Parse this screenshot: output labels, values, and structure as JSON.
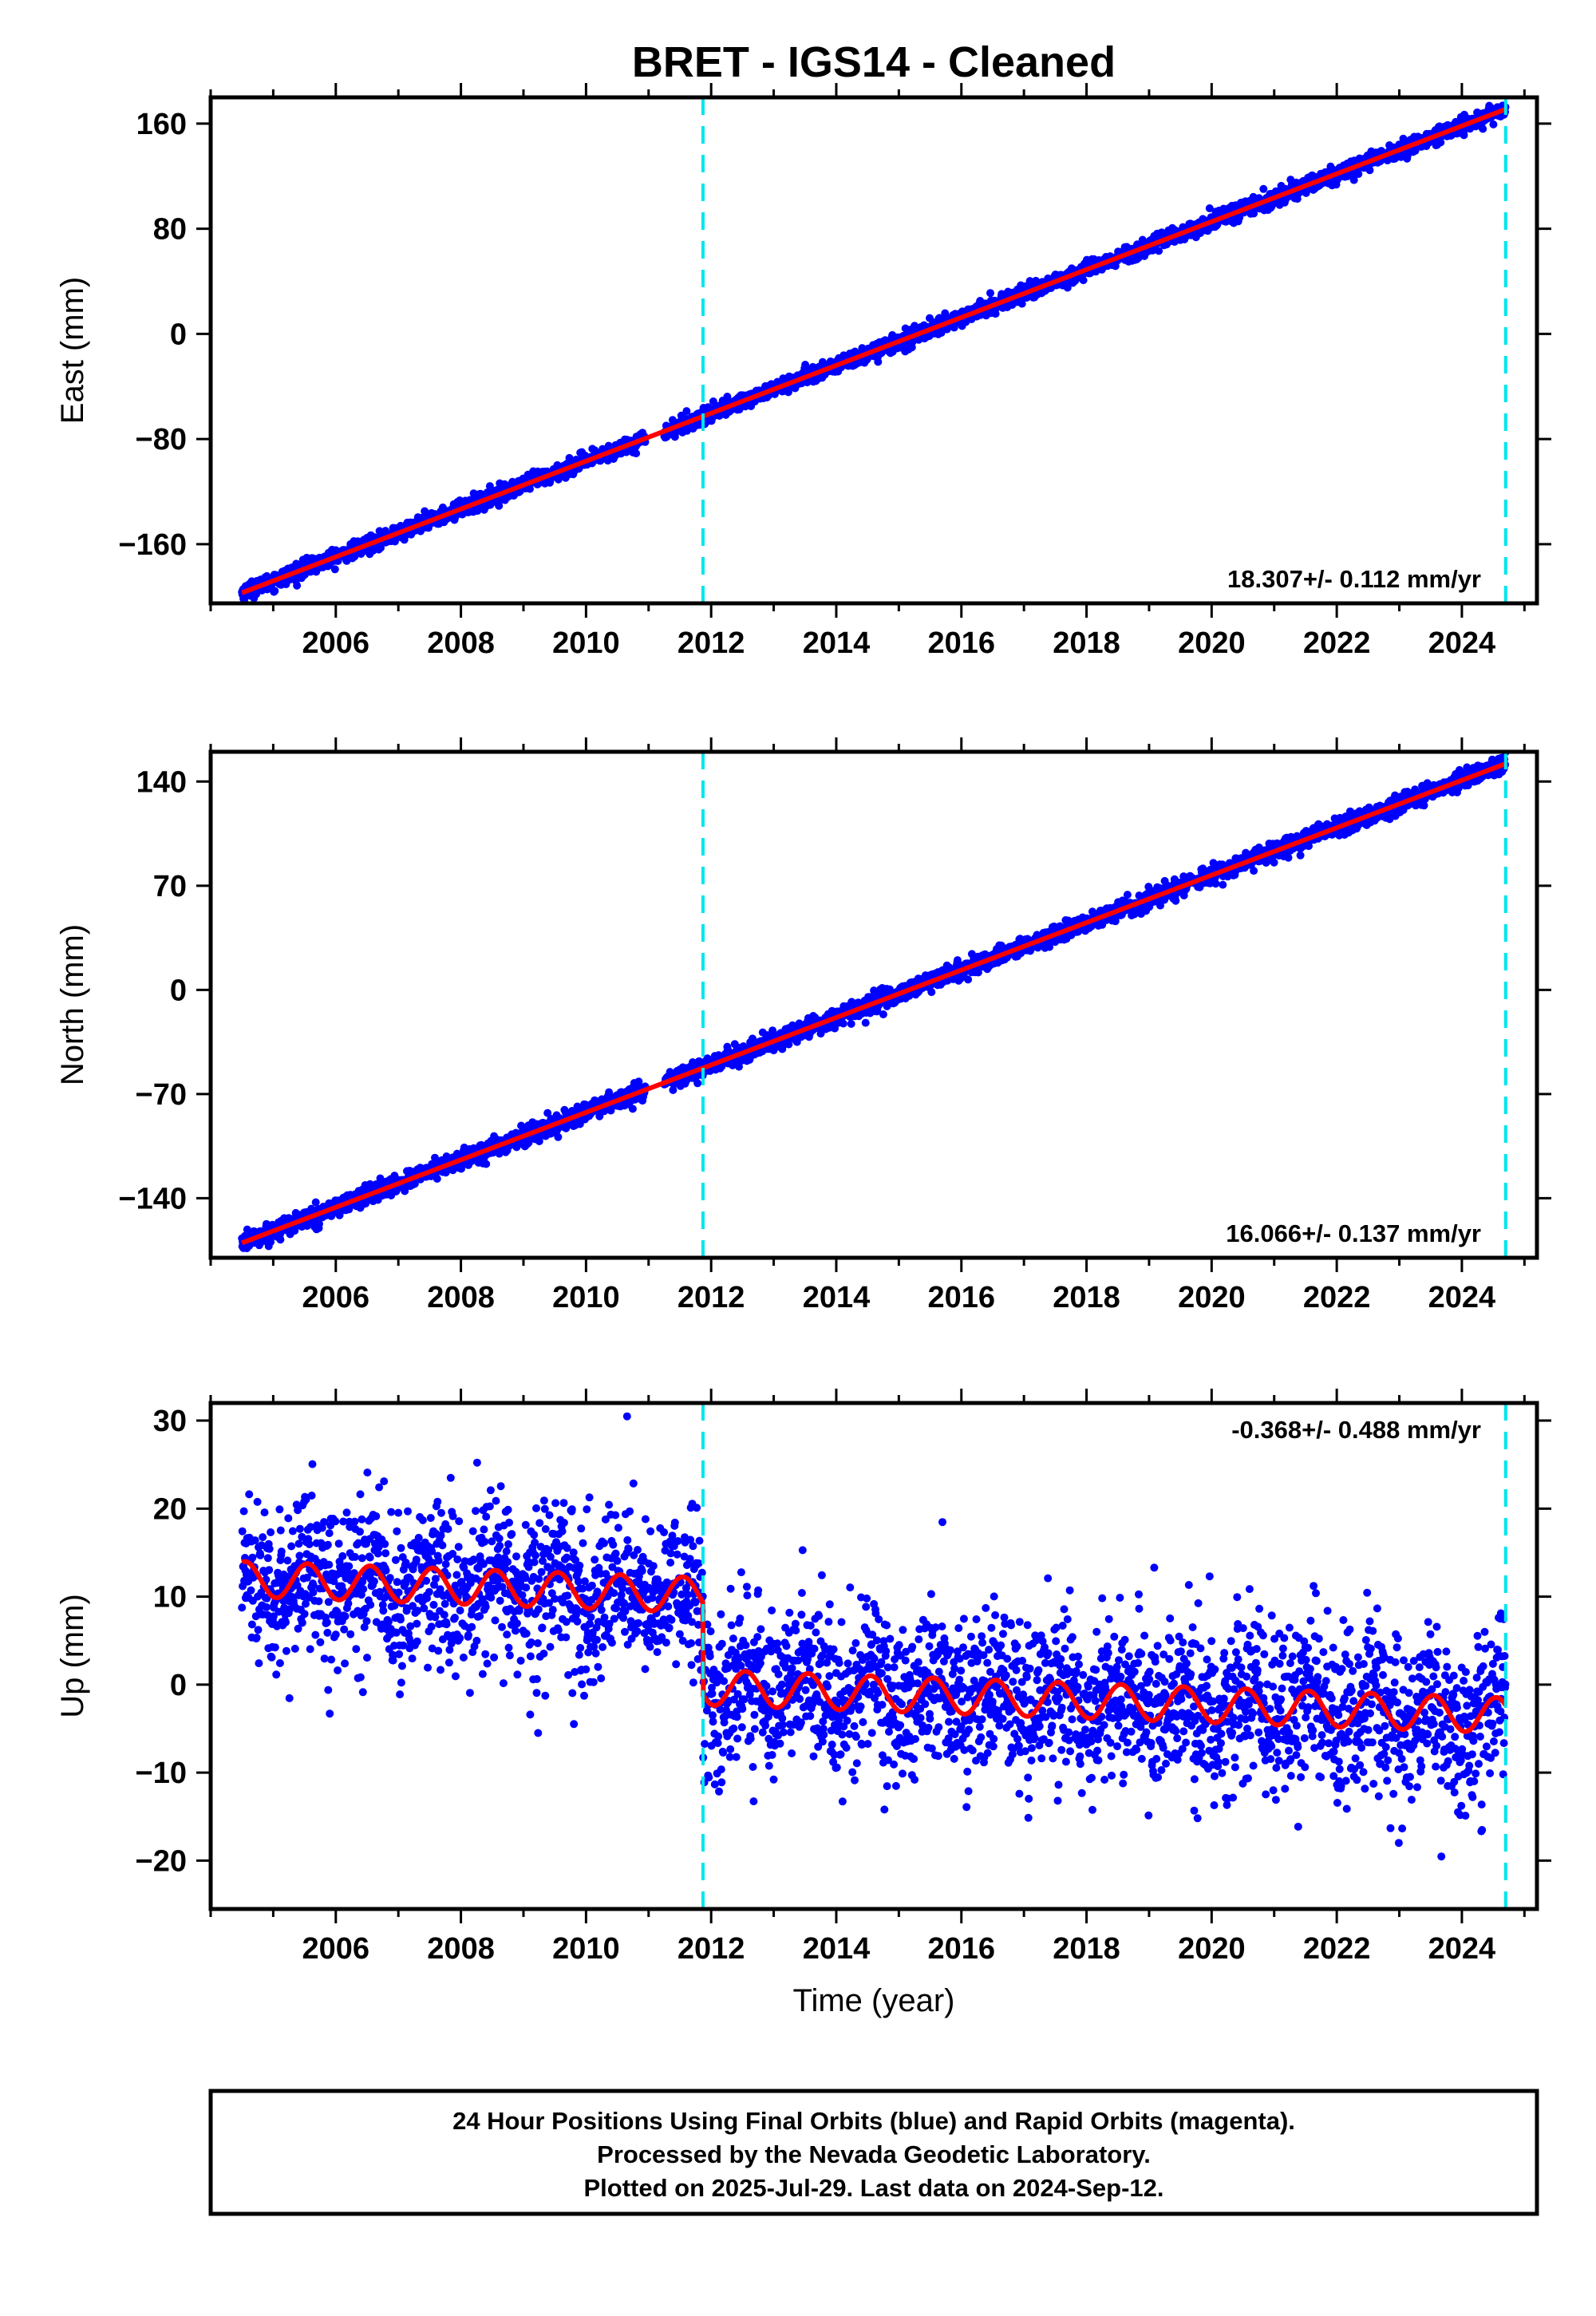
{
  "title": "BRET  - IGS14 - Cleaned",
  "colors": {
    "data_points": "#0000ff",
    "model_fit": "#ff0000",
    "breaks": "#00e5ee",
    "frame": "#000000"
  },
  "chart_data": [
    {
      "type": "scatter",
      "ylabel": "East (mm)",
      "xlim": [
        2004.0,
        2025.2
      ],
      "ylim": [
        -205,
        180
      ],
      "yticks": [
        160,
        80,
        0,
        -80,
        -160
      ],
      "ytick_labels": [
        "160",
        "80",
        "0",
        "−80",
        "−160"
      ],
      "xticks": [
        2006,
        2008,
        2010,
        2012,
        2014,
        2016,
        2018,
        2020,
        2022,
        2024
      ],
      "xtick_labels": [
        "2006",
        "2008",
        "2010",
        "2012",
        "2014",
        "2016",
        "2018",
        "2020",
        "2022",
        "2024"
      ],
      "rate": "18.307+/- 0.112 mm/yr",
      "rate_position": "bottom-right",
      "breaks": [
        2011.87,
        2024.7
      ],
      "x_start": 2004.5,
      "x_end": 2024.7,
      "y_start": -197,
      "y_end": 171,
      "noise_sd": 3,
      "seasonal_amplitude": 0,
      "offsets": []
    },
    {
      "type": "scatter",
      "ylabel": "North (mm)",
      "xlim": [
        2004.0,
        2025.2
      ],
      "ylim": [
        -180,
        160
      ],
      "yticks": [
        140,
        70,
        0,
        -70,
        -140
      ],
      "ytick_labels": [
        "140",
        "70",
        "0",
        "−70",
        "−140"
      ],
      "xticks": [
        2006,
        2008,
        2010,
        2012,
        2014,
        2016,
        2018,
        2020,
        2022,
        2024
      ],
      "xtick_labels": [
        "2006",
        "2008",
        "2010",
        "2012",
        "2014",
        "2016",
        "2018",
        "2020",
        "2022",
        "2024"
      ],
      "rate": "16.066+/- 0.137 mm/yr",
      "rate_position": "bottom-right",
      "breaks": [
        2011.87,
        2024.7
      ],
      "x_start": 2004.5,
      "x_end": 2024.7,
      "y_start": -170,
      "y_end": 152,
      "noise_sd": 3,
      "seasonal_amplitude": 0,
      "offsets": []
    },
    {
      "type": "scatter",
      "ylabel": "Up (mm)",
      "xlabel": "Time (year)",
      "xlim": [
        2004.0,
        2025.2
      ],
      "ylim": [
        -25.5,
        32
      ],
      "yticks": [
        30,
        20,
        10,
        0,
        -10,
        -20
      ],
      "ytick_labels": [
        "30",
        "20",
        "10",
        "0",
        "−10",
        "−20"
      ],
      "xticks": [
        2006,
        2008,
        2010,
        2012,
        2014,
        2016,
        2018,
        2020,
        2022,
        2024
      ],
      "xtick_labels": [
        "2006",
        "2008",
        "2010",
        "2012",
        "2014",
        "2016",
        "2018",
        "2020",
        "2022",
        "2024"
      ],
      "rate": "-0.368+/- 0.488 mm/yr",
      "rate_position": "top-right",
      "breaks": [
        2011.87,
        2024.7
      ],
      "x_start": 2004.5,
      "x_end": 2024.7,
      "y_start": 12.0,
      "y_end": -3.5,
      "noise_sd": 4.5,
      "seasonal_amplitude": 2.0,
      "offsets": [
        {
          "year": 2011.87,
          "mm": -10.5
        }
      ]
    }
  ],
  "caption": [
    "24 Hour Positions Using Final Orbits (blue) and Rapid Orbits (magenta).",
    "Processed by the Nevada Geodetic Laboratory.",
    "Plotted on 2025-Jul-29. Last data on 2024-Sep-12."
  ]
}
